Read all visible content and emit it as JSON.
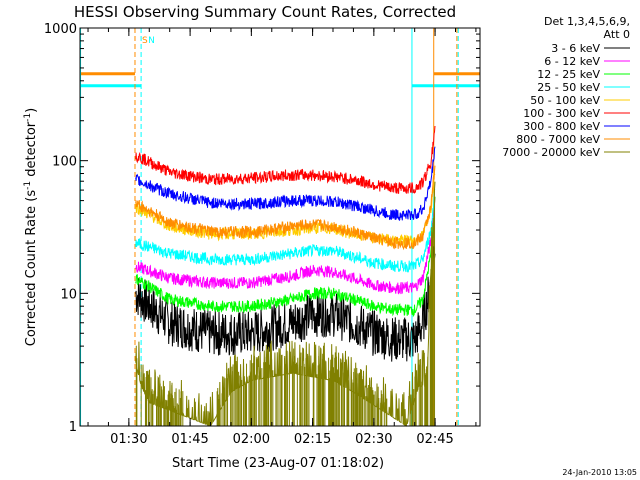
{
  "chart_data": {
    "type": "line",
    "title": "HESSI Observing Summary Count Rates, Corrected",
    "xlabel": "Start Time (23-Aug-07 01:18:02)",
    "ylabel": "Corrected Count Rate (s⁻¹ detector⁻¹)",
    "ylabel_base": "Corrected Count Rate (s",
    "ylabel_exp1": "-1",
    "ylabel_mid": " detector",
    "ylabel_exp2": "-1",
    "ylabel_end": ")",
    "y_scale": "log",
    "ylim": [
      1,
      1000
    ],
    "xlim": [
      "01:18:02",
      "02:56:00"
    ],
    "x_ticks": [
      "01:30",
      "01:45",
      "02:00",
      "02:15",
      "02:30",
      "02:45"
    ],
    "y_ticks": [
      "1",
      "10",
      "100",
      "1000"
    ],
    "grid": false,
    "legend_placement": "right",
    "legend_header": [
      "Det 1,3,4,5,6,9,",
      "Att 0"
    ],
    "annotations": [
      "S",
      "N"
    ],
    "timestamp": "24-Jan-2010 13:05",
    "series": [
      {
        "name": "3 - 6 keV",
        "color": "#000000",
        "x": [
          "01:31:40",
          "01:40",
          "01:50",
          "02:00",
          "02:10",
          "02:15",
          "02:20",
          "02:25",
          "02:30",
          "02:35",
          "02:40",
          "02:42",
          "02:44",
          "02:45"
        ],
        "y": [
          10,
          6,
          5,
          5,
          6,
          7,
          7,
          6,
          5,
          4.5,
          4.5,
          6,
          12,
          25
        ]
      },
      {
        "name": "6 - 12 keV",
        "color": "#ff00ff",
        "x": [
          "01:31:40",
          "01:40",
          "01:50",
          "02:00",
          "02:10",
          "02:15",
          "02:20",
          "02:25",
          "02:30",
          "02:35",
          "02:40",
          "02:42",
          "02:44",
          "02:45"
        ],
        "y": [
          16,
          13,
          12,
          12,
          13.5,
          15,
          14.5,
          13,
          11.5,
          11,
          11,
          13,
          25,
          55
        ]
      },
      {
        "name": "12 - 25 keV",
        "color": "#00ff00",
        "x": [
          "01:31:40",
          "01:40",
          "01:50",
          "02:00",
          "02:10",
          "02:15",
          "02:20",
          "02:25",
          "02:30",
          "02:35",
          "02:40",
          "02:42",
          "02:44",
          "02:45"
        ],
        "y": [
          13,
          9,
          8,
          8,
          9,
          10,
          10,
          9,
          8,
          7.5,
          7.5,
          9,
          20,
          50
        ]
      },
      {
        "name": "25 - 50 keV",
        "color": "#00ffff",
        "x": [
          "01:31:40",
          "01:40",
          "01:50",
          "02:00",
          "02:10",
          "02:15",
          "02:20",
          "02:25",
          "02:30",
          "02:35",
          "02:40",
          "02:42",
          "02:44",
          "02:45"
        ],
        "y": [
          24,
          20,
          18,
          18,
          20,
          21,
          21,
          19,
          17,
          16,
          16,
          18,
          30,
          65
        ]
      },
      {
        "name": "50 - 100 keV",
        "color": "#ffcc00",
        "x": [
          "01:31:40",
          "01:40",
          "01:50",
          "02:00",
          "02:10",
          "02:15",
          "02:20",
          "02:25",
          "02:30",
          "02:35",
          "02:40",
          "02:42",
          "02:44",
          "02:45"
        ],
        "y": [
          45,
          32,
          28,
          28,
          30,
          31,
          31,
          28,
          26,
          25,
          25,
          27,
          45,
          90
        ]
      },
      {
        "name": "100 - 300 keV",
        "color": "#ff0000",
        "x": [
          "01:31:40",
          "01:40",
          "01:50",
          "02:00",
          "02:10",
          "02:15",
          "02:20",
          "02:25",
          "02:30",
          "02:35",
          "02:40",
          "02:42",
          "02:44",
          "02:45"
        ],
        "y": [
          110,
          82,
          72,
          74,
          78,
          78,
          76,
          72,
          66,
          62,
          62,
          68,
          100,
          170
        ]
      },
      {
        "name": "300 - 800 keV",
        "color": "#0000ff",
        "x": [
          "01:31:40",
          "01:40",
          "01:50",
          "02:00",
          "02:10",
          "02:15",
          "02:20",
          "02:25",
          "02:30",
          "02:35",
          "02:40",
          "02:42",
          "02:44",
          "02:45"
        ],
        "y": [
          72,
          56,
          48,
          47,
          50,
          50,
          49,
          46,
          42,
          39,
          39,
          43,
          70,
          130
        ]
      },
      {
        "name": "800 - 7000 keV",
        "color": "#ff8c00",
        "x": [
          "01:31:40",
          "01:40",
          "01:50",
          "02:00",
          "02:10",
          "02:15",
          "02:20",
          "02:25",
          "02:30",
          "02:35",
          "02:40",
          "02:42",
          "02:44",
          "02:45"
        ],
        "y": [
          48,
          34,
          29,
          29,
          32,
          33,
          32,
          29,
          26,
          24,
          24,
          27,
          45,
          95
        ]
      },
      {
        "name": "7000 - 20000 keV",
        "color": "#808000",
        "x": [
          "01:31:40",
          "01:33",
          "01:35",
          "01:50",
          "01:55",
          "02:00",
          "02:10",
          "02:20",
          "02:25",
          "02:38",
          "02:41",
          "02:43",
          "02:44",
          "02:45"
        ],
        "y": [
          3,
          2,
          1.5,
          1,
          1.8,
          2.2,
          2.5,
          2.2,
          1.8,
          1,
          2,
          2,
          15,
          40
        ]
      }
    ],
    "markers": [
      {
        "label": "S",
        "time": "01:31:30",
        "color": "#ff8c00",
        "style": "dashed"
      },
      {
        "label": "N",
        "time": "01:33:00",
        "color": "#00ffff",
        "style": "dashed"
      },
      {
        "time": "02:39:20",
        "color": "#00ffff",
        "style": "solid"
      },
      {
        "time": "02:44:40",
        "color": "#ff8c00",
        "style": "solid"
      },
      {
        "time": "02:50:20",
        "color": "#ff8c00",
        "style": "dashed"
      },
      {
        "time": "02:50:40",
        "color": "#00ffff",
        "style": "dashed"
      },
      {
        "time": "01:18:10",
        "color": "#00ffff",
        "style": "solid"
      }
    ],
    "top_bars": [
      {
        "color": "#ff8c00",
        "from": "01:18:02",
        "to": "01:31:30",
        "level": 0.885
      },
      {
        "color": "#00ffff",
        "from": "01:18:02",
        "to": "01:33:00",
        "level": 0.855
      },
      {
        "color": "#ff8c00",
        "from": "02:44:40",
        "to": "02:56:00",
        "level": 0.885
      },
      {
        "color": "#00ffff",
        "from": "02:39:20",
        "to": "02:56:00",
        "level": 0.855
      }
    ]
  }
}
